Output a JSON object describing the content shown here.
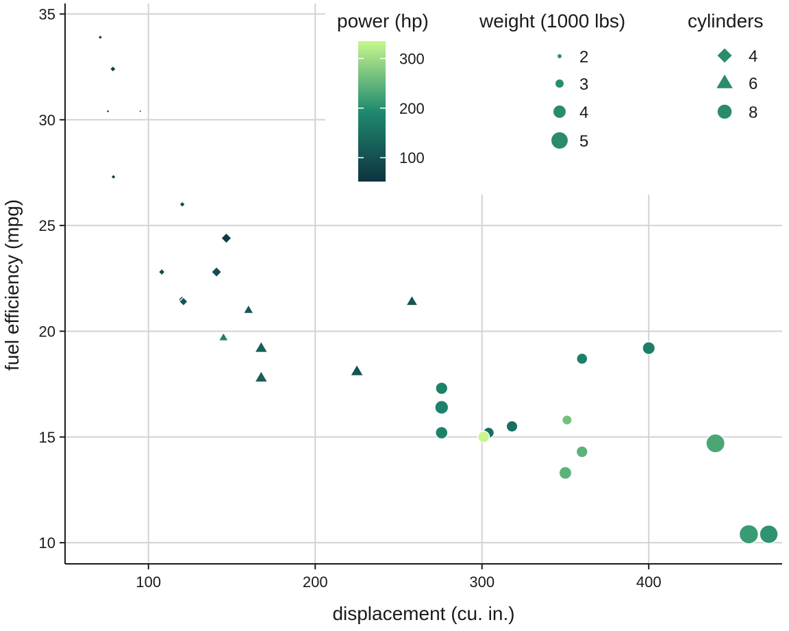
{
  "chart_data": {
    "type": "scatter",
    "title": "",
    "xlabel": "displacement (cu. in.)",
    "ylabel": "fuel efficiency (mpg)",
    "xlim": [
      50,
      480
    ],
    "ylim": [
      9,
      35.5
    ],
    "xticks": [
      100,
      200,
      300,
      400
    ],
    "yticks": [
      10,
      15,
      20,
      25,
      30,
      35
    ],
    "grid": true,
    "colors": {
      "low": "#0e3341",
      "mid": "#1f8a6e",
      "high": "#c8f78e",
      "marker": "#2a8c6c",
      "grid": "#d2d2d2",
      "axis": "#1a1a1a"
    },
    "points": [
      {
        "disp": 71.1,
        "mpg": 33.9,
        "hp": 65,
        "wt": 1.835,
        "cyl": 4
      },
      {
        "disp": 78.7,
        "mpg": 32.4,
        "hp": 66,
        "wt": 2.2,
        "cyl": 4
      },
      {
        "disp": 75.7,
        "mpg": 30.4,
        "hp": 52,
        "wt": 1.615,
        "cyl": 4
      },
      {
        "disp": 95.1,
        "mpg": 30.4,
        "hp": 113,
        "wt": 1.513,
        "cyl": 4
      },
      {
        "disp": 79.0,
        "mpg": 27.3,
        "hp": 66,
        "wt": 1.935,
        "cyl": 4
      },
      {
        "disp": 120.3,
        "mpg": 26.0,
        "hp": 91,
        "wt": 2.14,
        "cyl": 4
      },
      {
        "disp": 146.7,
        "mpg": 24.4,
        "hp": 62,
        "wt": 3.19,
        "cyl": 4
      },
      {
        "disp": 108.0,
        "mpg": 22.8,
        "hp": 93,
        "wt": 2.32,
        "cyl": 4
      },
      {
        "disp": 140.8,
        "mpg": 22.8,
        "hp": 95,
        "wt": 3.15,
        "cyl": 4
      },
      {
        "disp": 120.1,
        "mpg": 21.5,
        "hp": 97,
        "wt": 2.465,
        "cyl": 4
      },
      {
        "disp": 121.0,
        "mpg": 21.4,
        "hp": 109,
        "wt": 2.78,
        "cyl": 4
      },
      {
        "disp": 160.0,
        "mpg": 21.0,
        "hp": 110,
        "wt": 2.62,
        "cyl": 6
      },
      {
        "disp": 160.0,
        "mpg": 21.0,
        "hp": 110,
        "wt": 2.875,
        "cyl": 6
      },
      {
        "disp": 258.0,
        "mpg": 21.4,
        "hp": 110,
        "wt": 3.215,
        "cyl": 6
      },
      {
        "disp": 145.0,
        "mpg": 19.7,
        "hp": 175,
        "wt": 2.77,
        "cyl": 6
      },
      {
        "disp": 167.6,
        "mpg": 19.2,
        "hp": 123,
        "wt": 3.44,
        "cyl": 6
      },
      {
        "disp": 167.6,
        "mpg": 17.8,
        "hp": 123,
        "wt": 3.44,
        "cyl": 6
      },
      {
        "disp": 225.0,
        "mpg": 18.1,
        "hp": 105,
        "wt": 3.46,
        "cyl": 6
      },
      {
        "disp": 400.0,
        "mpg": 19.2,
        "hp": 175,
        "wt": 3.845,
        "cyl": 8
      },
      {
        "disp": 360.0,
        "mpg": 18.7,
        "hp": 175,
        "wt": 3.44,
        "cyl": 8
      },
      {
        "disp": 275.8,
        "mpg": 17.3,
        "hp": 180,
        "wt": 3.73,
        "cyl": 8
      },
      {
        "disp": 275.8,
        "mpg": 16.4,
        "hp": 180,
        "wt": 4.07,
        "cyl": 8
      },
      {
        "disp": 275.8,
        "mpg": 15.2,
        "hp": 180,
        "wt": 3.78,
        "cyl": 8
      },
      {
        "disp": 304.0,
        "mpg": 15.2,
        "hp": 150,
        "wt": 3.435,
        "cyl": 8
      },
      {
        "disp": 318.0,
        "mpg": 15.5,
        "hp": 150,
        "wt": 3.52,
        "cyl": 8
      },
      {
        "disp": 351.0,
        "mpg": 15.8,
        "hp": 264,
        "wt": 3.17,
        "cyl": 8
      },
      {
        "disp": 301.0,
        "mpg": 15.0,
        "hp": 335,
        "wt": 3.57,
        "cyl": 8
      },
      {
        "disp": 360.0,
        "mpg": 14.3,
        "hp": 245,
        "wt": 3.57,
        "cyl": 8
      },
      {
        "disp": 350.0,
        "mpg": 13.3,
        "hp": 245,
        "wt": 3.84,
        "cyl": 8
      },
      {
        "disp": 440.0,
        "mpg": 14.7,
        "hp": 230,
        "wt": 5.345,
        "cyl": 8
      },
      {
        "disp": 460.0,
        "mpg": 10.4,
        "hp": 215,
        "wt": 5.424,
        "cyl": 8
      },
      {
        "disp": 472.0,
        "mpg": 10.4,
        "hp": 205,
        "wt": 5.25,
        "cyl": 8
      }
    ],
    "legends": {
      "power": {
        "title": "power (hp)",
        "range": [
          52,
          335
        ],
        "ticks": [
          100,
          200,
          300
        ]
      },
      "weight": {
        "title": "weight (1000 lbs)",
        "entries": [
          2,
          3,
          4,
          5
        ]
      },
      "cylinders": {
        "title": "cylinders",
        "entries": [
          {
            "value": 4,
            "shape": "diamond"
          },
          {
            "value": 6,
            "shape": "triangle"
          },
          {
            "value": 8,
            "shape": "circle"
          }
        ]
      }
    }
  }
}
